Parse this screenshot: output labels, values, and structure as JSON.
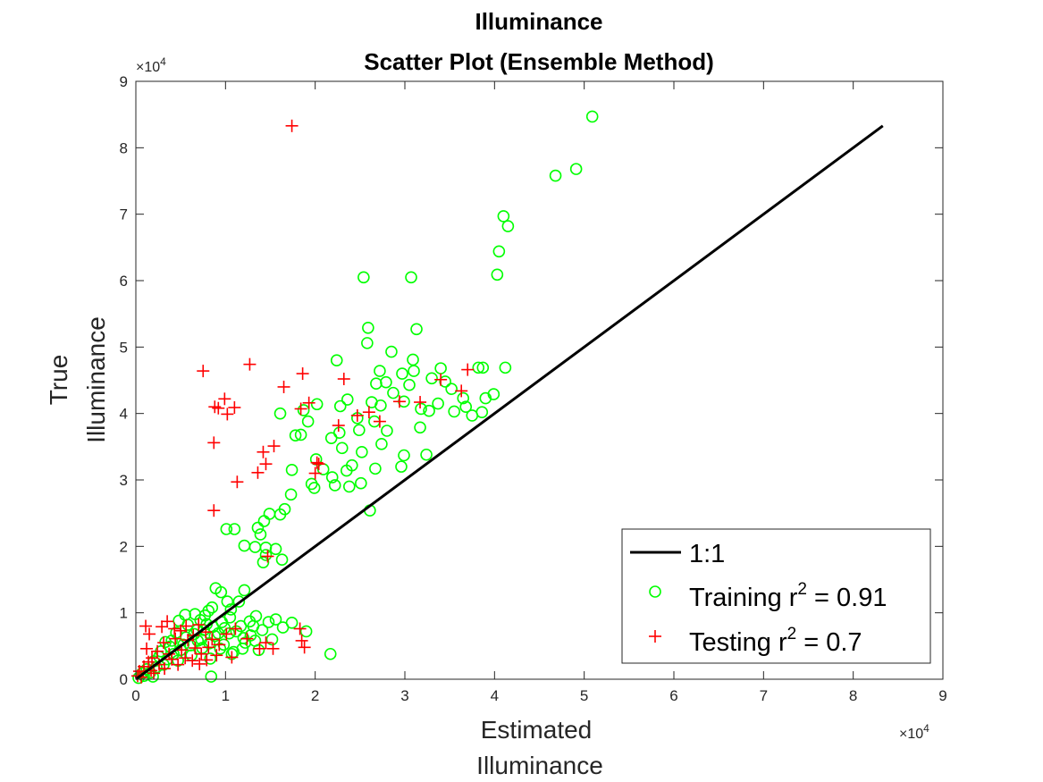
{
  "chart_data": {
    "type": "scatter",
    "title": [
      "Illuminance",
      "Scatter Plot (Ensemble Method)"
    ],
    "xlabel": [
      "Estimated",
      "Illuminance"
    ],
    "ylabel": [
      "True",
      "Illuminance"
    ],
    "xlim": [
      0,
      90000
    ],
    "ylim": [
      0,
      90000
    ],
    "xticks": [
      0,
      1,
      2,
      3,
      4,
      5,
      6,
      7,
      8,
      9
    ],
    "yticks": [
      0,
      1,
      2,
      3,
      4,
      5,
      6,
      7,
      8,
      9
    ],
    "tick_scale_label": "×10",
    "tick_scale_exponent": "4",
    "grid": false,
    "legend_position": "bottom-right",
    "reference_line": {
      "name": "1:1",
      "x": [
        0,
        83300
      ],
      "y": [
        0,
        83300
      ],
      "color": "#000000"
    },
    "series": [
      {
        "name": "Training r² = 0.91",
        "legend_prefix": "Training r",
        "legend_sup": "2",
        "legend_suffix": " = 0.91",
        "marker": "circle",
        "color": "#00ff00",
        "points": [
          [
            50900,
            84700
          ],
          [
            49100,
            76800
          ],
          [
            46800,
            75800
          ],
          [
            41000,
            69700
          ],
          [
            41500,
            68200
          ],
          [
            40500,
            64400
          ],
          [
            40300,
            60900
          ],
          [
            25400,
            60500
          ],
          [
            30700,
            60500
          ],
          [
            25900,
            52900
          ],
          [
            31300,
            52700
          ],
          [
            25800,
            50600
          ],
          [
            28500,
            49300
          ],
          [
            30900,
            48100
          ],
          [
            22400,
            48000
          ],
          [
            27200,
            46400
          ],
          [
            38200,
            46900
          ],
          [
            38700,
            46900
          ],
          [
            41200,
            46900
          ],
          [
            34000,
            46800
          ],
          [
            31000,
            46400
          ],
          [
            29700,
            46000
          ],
          [
            33000,
            45300
          ],
          [
            34500,
            44800
          ],
          [
            26800,
            44500
          ],
          [
            27900,
            44700
          ],
          [
            30500,
            44300
          ],
          [
            23600,
            42100
          ],
          [
            26300,
            41700
          ],
          [
            32700,
            40400
          ],
          [
            35500,
            40300
          ],
          [
            38600,
            40200
          ],
          [
            36500,
            42300
          ],
          [
            39900,
            42900
          ],
          [
            33700,
            41500
          ],
          [
            29900,
            41800
          ],
          [
            31800,
            40700
          ],
          [
            22800,
            41100
          ],
          [
            20200,
            41400
          ],
          [
            18700,
            40500
          ],
          [
            16100,
            40000
          ],
          [
            19200,
            38800
          ],
          [
            22700,
            37100
          ],
          [
            18400,
            36800
          ],
          [
            17800,
            36700
          ],
          [
            26600,
            38800
          ],
          [
            24900,
            37500
          ],
          [
            28000,
            37400
          ],
          [
            31700,
            37900
          ],
          [
            23000,
            34800
          ],
          [
            25200,
            34200
          ],
          [
            27400,
            35400
          ],
          [
            29900,
            33700
          ],
          [
            32400,
            33800
          ],
          [
            20100,
            33100
          ],
          [
            17400,
            31500
          ],
          [
            20900,
            31600
          ],
          [
            24100,
            32200
          ],
          [
            19600,
            29400
          ],
          [
            19900,
            28800
          ],
          [
            22200,
            29200
          ],
          [
            23800,
            29000
          ],
          [
            25100,
            29500
          ],
          [
            21900,
            30400
          ],
          [
            23500,
            31400
          ],
          [
            26700,
            31700
          ],
          [
            29600,
            32000
          ],
          [
            17300,
            27800
          ],
          [
            16600,
            25600
          ],
          [
            16100,
            24800
          ],
          [
            26100,
            25400
          ],
          [
            14300,
            23800
          ],
          [
            14900,
            24900
          ],
          [
            13600,
            22800
          ],
          [
            13900,
            21800
          ],
          [
            10100,
            22600
          ],
          [
            11000,
            22600
          ],
          [
            12100,
            20100
          ],
          [
            13300,
            19900
          ],
          [
            14500,
            19800
          ],
          [
            15600,
            19600
          ],
          [
            14500,
            18700
          ],
          [
            14200,
            17600
          ],
          [
            16300,
            18000
          ],
          [
            8900,
            13700
          ],
          [
            9500,
            13100
          ],
          [
            12100,
            13400
          ],
          [
            10200,
            11700
          ],
          [
            11500,
            11700
          ],
          [
            8100,
            10300
          ],
          [
            8500,
            10800
          ],
          [
            10600,
            10500
          ],
          [
            13400,
            9500
          ],
          [
            15600,
            9000
          ],
          [
            17400,
            8500
          ],
          [
            14800,
            8600
          ],
          [
            13100,
            8000
          ],
          [
            16400,
            7800
          ],
          [
            19000,
            7200
          ],
          [
            21700,
            3800
          ],
          [
            8400,
            400
          ],
          [
            5300,
            5200
          ],
          [
            6500,
            6800
          ],
          [
            7200,
            8900
          ],
          [
            4500,
            7000
          ],
          [
            3800,
            4900
          ],
          [
            5800,
            8200
          ],
          [
            6900,
            5800
          ],
          [
            7600,
            7400
          ],
          [
            8800,
            6500
          ],
          [
            9600,
            8600
          ],
          [
            10400,
            6900
          ],
          [
            11700,
            8000
          ],
          [
            12800,
            6600
          ],
          [
            14100,
            7400
          ],
          [
            15200,
            6000
          ],
          [
            6200,
            3600
          ],
          [
            7400,
            4700
          ],
          [
            8300,
            3100
          ],
          [
            9800,
            5200
          ],
          [
            10900,
            4100
          ],
          [
            12200,
            5500
          ],
          [
            13700,
            4400
          ],
          [
            4700,
            2800
          ],
          [
            3100,
            2200
          ],
          [
            2300,
            1800
          ],
          [
            1600,
            1000
          ],
          [
            900,
            500
          ],
          [
            2800,
            4200
          ],
          [
            3500,
            3000
          ],
          [
            4200,
            3800
          ],
          [
            5000,
            4400
          ],
          [
            5600,
            6300
          ],
          [
            6100,
            5100
          ],
          [
            6800,
            7400
          ],
          [
            7300,
            6000
          ],
          [
            7900,
            8300
          ],
          [
            8600,
            7900
          ],
          [
            9200,
            6900
          ],
          [
            9900,
            7700
          ],
          [
            10500,
            9300
          ],
          [
            11200,
            7200
          ],
          [
            12000,
            6200
          ],
          [
            12700,
            8700
          ],
          [
            13300,
            5800
          ],
          [
            4000,
            5800
          ],
          [
            4800,
            8800
          ],
          [
            5500,
            9700
          ],
          [
            6600,
            9800
          ],
          [
            7700,
            9600
          ],
          [
            8200,
            5400
          ],
          [
            9400,
            4600
          ],
          [
            10700,
            3800
          ],
          [
            11900,
            4600
          ],
          [
            1200,
            1500
          ],
          [
            2000,
            2700
          ],
          [
            2600,
            3400
          ],
          [
            3300,
            5600
          ],
          [
            300,
            200
          ],
          [
            700,
            900
          ],
          [
            1900,
            400
          ],
          [
            36800,
            41000
          ],
          [
            37500,
            39700
          ],
          [
            39000,
            42300
          ],
          [
            35200,
            43700
          ],
          [
            28700,
            43100
          ],
          [
            27300,
            41200
          ],
          [
            24700,
            39300
          ],
          [
            21800,
            36300
          ]
        ]
      },
      {
        "name": "Testing r² = 0.7",
        "legend_prefix": "Testing r",
        "legend_sup": "2",
        "legend_suffix": " = 0.7",
        "marker": "plus",
        "color": "#ff0000",
        "points": [
          [
            17400,
            83300
          ],
          [
            7500,
            46400
          ],
          [
            12700,
            47400
          ],
          [
            18600,
            46000
          ],
          [
            9900,
            42200
          ],
          [
            9200,
            40800
          ],
          [
            11000,
            40900
          ],
          [
            10200,
            39900
          ],
          [
            8800,
            41000
          ],
          [
            16500,
            44000
          ],
          [
            18400,
            40700
          ],
          [
            19300,
            41600
          ],
          [
            22600,
            38200
          ],
          [
            26000,
            40200
          ],
          [
            24700,
            39700
          ],
          [
            29400,
            41800
          ],
          [
            31700,
            41700
          ],
          [
            34000,
            45100
          ],
          [
            37000,
            46600
          ],
          [
            36300,
            43400
          ],
          [
            27200,
            38800
          ],
          [
            23200,
            45200
          ],
          [
            20400,
            32400
          ],
          [
            20200,
            32600
          ],
          [
            20000,
            31000
          ],
          [
            14200,
            34200
          ],
          [
            15400,
            35100
          ],
          [
            14500,
            32400
          ],
          [
            13600,
            31100
          ],
          [
            11300,
            29700
          ],
          [
            8700,
            35600
          ],
          [
            8700,
            25400
          ],
          [
            14700,
            18500
          ],
          [
            18500,
            5800
          ],
          [
            18800,
            4800
          ],
          [
            18300,
            7600
          ],
          [
            14500,
            5500
          ],
          [
            15300,
            4600
          ],
          [
            1100,
            8000
          ],
          [
            1500,
            6800
          ],
          [
            1200,
            4600
          ],
          [
            2900,
            7900
          ],
          [
            3500,
            8700
          ],
          [
            4300,
            7600
          ],
          [
            5000,
            7300
          ],
          [
            5600,
            8000
          ],
          [
            6400,
            6600
          ],
          [
            7000,
            8200
          ],
          [
            7800,
            7100
          ],
          [
            8500,
            6000
          ],
          [
            9300,
            5200
          ],
          [
            10100,
            6800
          ],
          [
            11100,
            7600
          ],
          [
            12400,
            6100
          ],
          [
            13800,
            4600
          ],
          [
            1800,
            3200
          ],
          [
            2400,
            4200
          ],
          [
            3100,
            5500
          ],
          [
            3700,
            3800
          ],
          [
            4400,
            6100
          ],
          [
            5100,
            4400
          ],
          [
            5800,
            5900
          ],
          [
            6600,
            4700
          ],
          [
            7300,
            3800
          ],
          [
            8100,
            4800
          ],
          [
            9000,
            3600
          ],
          [
            10700,
            3300
          ],
          [
            400,
            1200
          ],
          [
            900,
            1900
          ],
          [
            1400,
            2600
          ],
          [
            2000,
            900
          ],
          [
            2600,
            2200
          ],
          [
            3200,
            1600
          ],
          [
            4000,
            3000
          ],
          [
            4700,
            2200
          ],
          [
            5500,
            3200
          ],
          [
            6300,
            2800
          ],
          [
            7100,
            2300
          ],
          [
            7900,
            2900
          ],
          [
            200,
            500
          ],
          [
            600,
            300
          ],
          [
            1700,
            1300
          ]
        ]
      }
    ]
  }
}
